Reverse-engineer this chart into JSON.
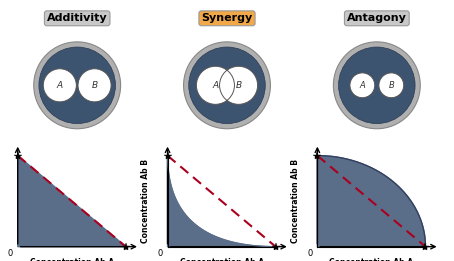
{
  "titles": [
    "Additivity",
    "Synergy",
    "Antagony"
  ],
  "title_bg_colors": [
    "#c8c8c8",
    "#f0a848",
    "#c8c8c8"
  ],
  "title_fontsize": 8,
  "fill_color": "#5a6e8a",
  "fill_alpha": 1.0,
  "dash_color": "#aa0020",
  "dash_lw": 1.5,
  "axis_label_A": "Concentration Ab A",
  "axis_label_B": "Concentration Ab B",
  "petri_outer_color": "#b0b0b0",
  "petri_inner_color": "#3d5470",
  "petri_outer_ec": "#888888",
  "petri_inner_ec": "#2a3a50",
  "zone_color": "#ffffff",
  "zone_ec": "#555555",
  "label_fontsize": 5.5,
  "label_fontweight": "bold"
}
